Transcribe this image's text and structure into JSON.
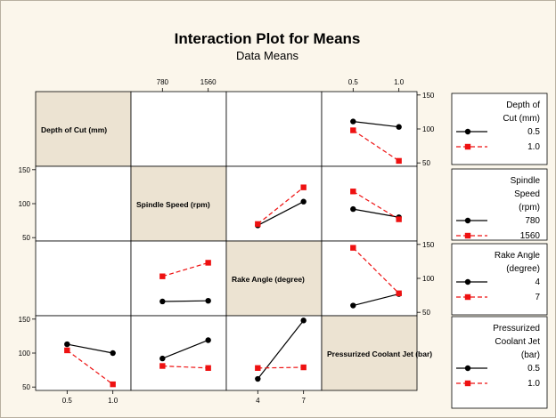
{
  "chart_data": {
    "type": "line",
    "title": "Interaction Plot for Means",
    "subtitle": "Data Means",
    "factors": [
      {
        "name": "Depth of Cut (mm)",
        "legend_title": [
          "Depth of",
          "Cut (mm)"
        ],
        "levels": [
          "0.5",
          "1.0"
        ],
        "ticks": [
          "0.5",
          "1.0"
        ]
      },
      {
        "name": "Spindle Speed (rpm)",
        "legend_title": [
          "Spindle",
          "Speed",
          "(rpm)"
        ],
        "levels": [
          "780",
          "1560"
        ],
        "ticks": [
          "780",
          "1560"
        ]
      },
      {
        "name": "Rake Angle (degree)",
        "legend_title": [
          "Rake Angle",
          "(degree)"
        ],
        "levels": [
          "4",
          "7"
        ],
        "ticks": [
          "4",
          "7"
        ]
      },
      {
        "name": "Pressurized Coolant Jet (bar)",
        "legend_title": [
          "Pressurized",
          "Coolant Jet",
          "(bar)"
        ],
        "levels": [
          "0.5",
          "1.0"
        ],
        "ticks": [
          "0.5",
          "1.0"
        ]
      }
    ],
    "y_range": [
      45,
      155
    ],
    "y_ticks": [
      "50",
      "100",
      "150"
    ],
    "series_colors": [
      "#000000",
      "#ee1111"
    ],
    "panels": [
      {
        "row": 0,
        "col": 3,
        "series": [
          [
            111,
            103
          ],
          [
            98,
            53
          ]
        ]
      },
      {
        "row": 1,
        "col": 2,
        "series": [
          [
            68,
            103
          ],
          [
            70,
            124
          ]
        ]
      },
      {
        "row": 1,
        "col": 3,
        "series": [
          [
            92,
            80
          ],
          [
            118,
            77
          ]
        ]
      },
      {
        "row": 2,
        "col": 1,
        "series": [
          [
            66,
            67
          ],
          [
            103,
            123
          ]
        ]
      },
      {
        "row": 2,
        "col": 3,
        "series": [
          [
            60,
            77
          ],
          [
            145,
            78
          ]
        ]
      },
      {
        "row": 3,
        "col": 0,
        "series": [
          [
            113,
            100
          ],
          [
            104,
            54
          ]
        ]
      },
      {
        "row": 3,
        "col": 1,
        "series": [
          [
            92,
            119
          ],
          [
            81,
            78
          ]
        ]
      },
      {
        "row": 3,
        "col": 2,
        "series": [
          [
            62,
            148
          ],
          [
            78,
            79
          ]
        ]
      }
    ]
  }
}
